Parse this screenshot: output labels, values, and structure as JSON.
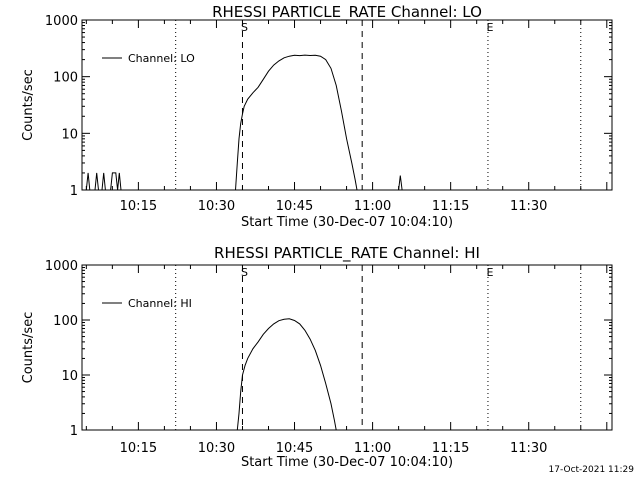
{
  "footer_timestamp": "17-Oct-2021 11:29",
  "chart_data": [
    {
      "type": "line",
      "title": "RHESSI PARTICLE_RATE Channel: LO",
      "xlabel": "Start Time (30-Dec-07 10:04:10)",
      "ylabel": "Counts/sec",
      "yscale": "log",
      "ylim": [
        1,
        1000
      ],
      "yticks": [
        {
          "value": 1,
          "label": "1"
        },
        {
          "value": 10,
          "label": "10"
        },
        {
          "value": 100,
          "label": "100"
        },
        {
          "value": 1000,
          "label": "1000"
        }
      ],
      "xlim": [
        "10:04:10",
        "11:46:00"
      ],
      "xticks": [
        "10:15",
        "10:30",
        "10:45",
        "11:00",
        "11:15",
        "11:30"
      ],
      "legend": {
        "label": "Channel: LO",
        "position": "top-left"
      },
      "markers": [
        {
          "label": "S",
          "time": "10:35:00",
          "style": "dashed"
        },
        {
          "label": "E",
          "time": "11:22:10",
          "style": "dotted"
        }
      ],
      "vlines": [
        {
          "time": "10:04:10",
          "style": "dotted"
        },
        {
          "time": "10:22:10",
          "style": "dotted"
        },
        {
          "time": "10:35:00",
          "style": "dashed"
        },
        {
          "time": "10:58:00",
          "style": "dashed"
        },
        {
          "time": "11:22:10",
          "style": "dotted"
        },
        {
          "time": "11:40:00",
          "style": "dotted"
        }
      ],
      "series": [
        {
          "name": "Channel: LO",
          "points": [
            [
              "10:05:00",
              1
            ],
            [
              "10:05:20",
              2
            ],
            [
              "10:05:40",
              1
            ],
            [
              "10:06:40",
              1
            ],
            [
              "10:07:00",
              2
            ],
            [
              "10:07:20",
              1
            ],
            [
              "10:08:00",
              1
            ],
            [
              "10:08:20",
              2
            ],
            [
              "10:08:40",
              1
            ],
            [
              "10:09:40",
              1
            ],
            [
              "10:10:00",
              2
            ],
            [
              "10:10:40",
              2
            ],
            [
              "10:11:00",
              1
            ],
            [
              "10:11:20",
              2
            ],
            [
              "10:11:40",
              1
            ],
            [
              "10:33:40",
              1
            ],
            [
              "10:34:00",
              3
            ],
            [
              "10:34:20",
              8
            ],
            [
              "10:34:40",
              15
            ],
            [
              "10:35:00",
              22
            ],
            [
              "10:35:20",
              30
            ],
            [
              "10:36:00",
              40
            ],
            [
              "10:37:00",
              52
            ],
            [
              "10:38:00",
              65
            ],
            [
              "10:39:00",
              90
            ],
            [
              "10:40:00",
              125
            ],
            [
              "10:41:00",
              160
            ],
            [
              "10:42:00",
              190
            ],
            [
              "10:43:00",
              215
            ],
            [
              "10:44:00",
              230
            ],
            [
              "10:45:00",
              238
            ],
            [
              "10:46:00",
              235
            ],
            [
              "10:47:00",
              240
            ],
            [
              "10:48:00",
              236
            ],
            [
              "10:49:00",
              238
            ],
            [
              "10:50:00",
              230
            ],
            [
              "10:51:00",
              200
            ],
            [
              "10:52:00",
              140
            ],
            [
              "10:53:00",
              70
            ],
            [
              "10:54:00",
              25
            ],
            [
              "10:55:00",
              8
            ],
            [
              "10:56:00",
              3
            ],
            [
              "10:56:40",
              1.5
            ],
            [
              "10:57:00",
              1
            ],
            [
              "11:05:00",
              1
            ],
            [
              "11:05:20",
              1.8
            ],
            [
              "11:05:40",
              1
            ]
          ]
        }
      ]
    },
    {
      "type": "line",
      "title": "RHESSI PARTICLE_RATE Channel: HI",
      "xlabel": "Start Time (30-Dec-07 10:04:10)",
      "ylabel": "Counts/sec",
      "yscale": "log",
      "ylim": [
        1,
        1000
      ],
      "yticks": [
        {
          "value": 1,
          "label": "1"
        },
        {
          "value": 10,
          "label": "10"
        },
        {
          "value": 100,
          "label": "100"
        },
        {
          "value": 1000,
          "label": "1000"
        }
      ],
      "xlim": [
        "10:04:10",
        "11:46:00"
      ],
      "xticks": [
        "10:15",
        "10:30",
        "10:45",
        "11:00",
        "11:15",
        "11:30"
      ],
      "legend": {
        "label": "Channel: HI",
        "position": "top-left"
      },
      "markers": [
        {
          "label": "S",
          "time": "10:35:00",
          "style": "dashed"
        },
        {
          "label": "E",
          "time": "11:22:10",
          "style": "dotted"
        }
      ],
      "vlines": [
        {
          "time": "10:04:10",
          "style": "dotted"
        },
        {
          "time": "10:22:10",
          "style": "dotted"
        },
        {
          "time": "10:35:00",
          "style": "dashed"
        },
        {
          "time": "10:58:00",
          "style": "dashed"
        },
        {
          "time": "11:22:10",
          "style": "dotted"
        },
        {
          "time": "11:40:00",
          "style": "dotted"
        }
      ],
      "series": [
        {
          "name": "Channel: HI",
          "points": [
            [
              "10:34:00",
              1
            ],
            [
              "10:34:20",
              2
            ],
            [
              "10:34:40",
              5
            ],
            [
              "10:35:00",
              10
            ],
            [
              "10:35:30",
              15
            ],
            [
              "10:36:00",
              20
            ],
            [
              "10:37:00",
              30
            ],
            [
              "10:38:00",
              40
            ],
            [
              "10:39:00",
              55
            ],
            [
              "10:40:00",
              70
            ],
            [
              "10:41:00",
              85
            ],
            [
              "10:42:00",
              97
            ],
            [
              "10:43:00",
              103
            ],
            [
              "10:44:00",
              105
            ],
            [
              "10:45:00",
              98
            ],
            [
              "10:46:00",
              85
            ],
            [
              "10:47:00",
              65
            ],
            [
              "10:48:00",
              45
            ],
            [
              "10:49:00",
              28
            ],
            [
              "10:50:00",
              15
            ],
            [
              "10:51:00",
              7
            ],
            [
              "10:52:00",
              3
            ],
            [
              "10:52:40",
              1.5
            ],
            [
              "10:53:00",
              1
            ]
          ]
        }
      ]
    }
  ]
}
